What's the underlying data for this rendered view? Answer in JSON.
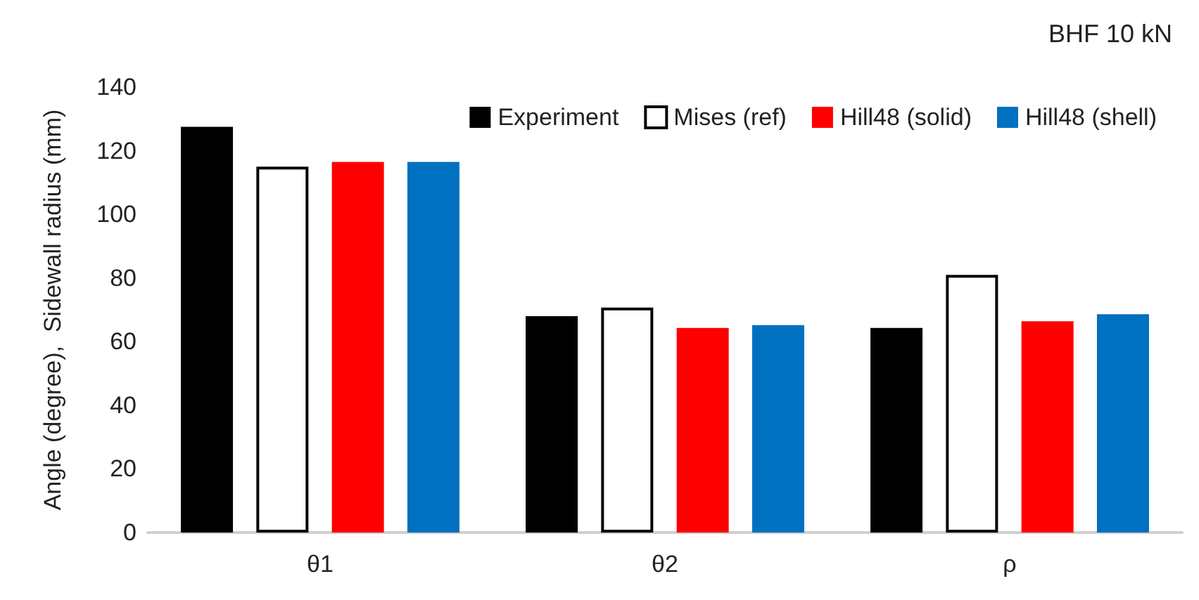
{
  "chart_data": {
    "type": "bar",
    "title": "BHF 10 kN",
    "ylabel": "Angle (degree),  Sidewall radius (mm)",
    "categories": [
      "θ1",
      "θ2",
      "ρ"
    ],
    "series": [
      {
        "name": "Experiment",
        "color": "#000000",
        "values": [
          127.5,
          68,
          64.3
        ]
      },
      {
        "name": "Mises (ref)",
        "color": "#ffffff",
        "values": [
          115,
          70.7,
          81
        ]
      },
      {
        "name": "Hill48 (solid)",
        "color": "#ff0000",
        "values": [
          116.5,
          64.3,
          66.4
        ]
      },
      {
        "name": "Hill48 (shell)",
        "color": "#0070c0",
        "values": [
          116.5,
          65.2,
          68.6
        ]
      }
    ],
    "ylim": [
      0,
      140
    ],
    "yticks": [
      0,
      20,
      40,
      60,
      80,
      100,
      120,
      140
    ],
    "grid": false,
    "legend": "top right"
  }
}
